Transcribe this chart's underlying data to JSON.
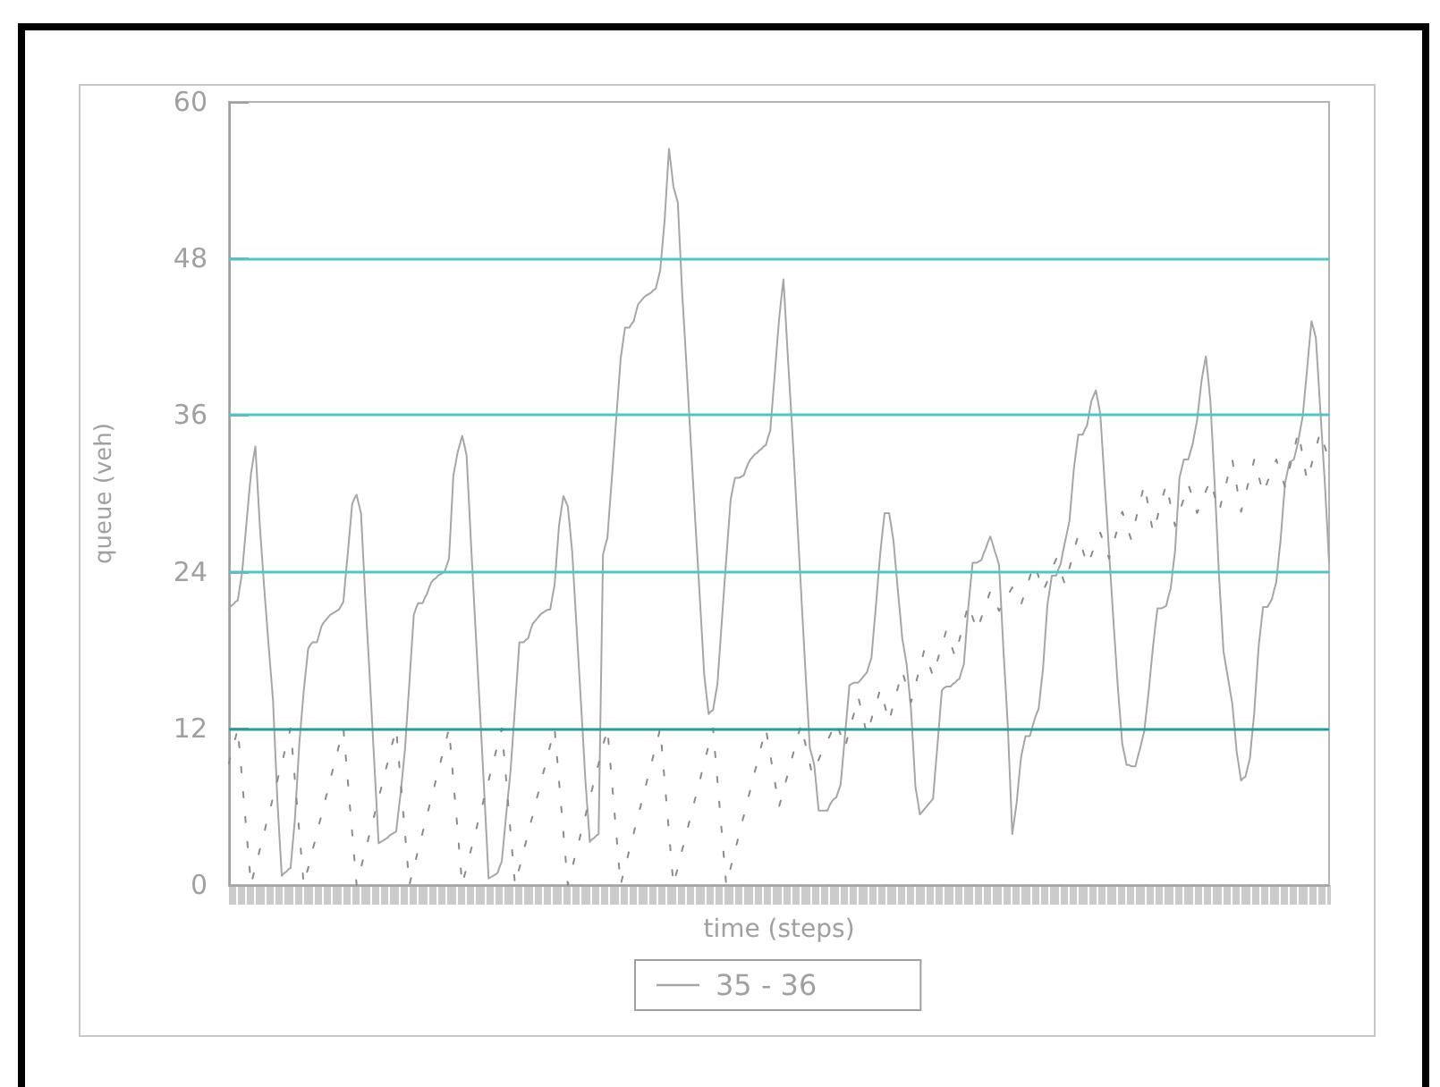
{
  "chart_data": {
    "type": "line",
    "xlabel": "time (steps)",
    "ylabel": "queue (veh)",
    "categories": [
      null,
      null,
      null,
      null,
      null,
      null,
      null,
      null,
      null,
      null,
      null,
      null,
      null,
      null,
      null,
      null,
      null,
      null,
      null,
      null,
      null,
      null,
      null,
      null,
      null,
      null,
      null,
      null,
      null,
      null,
      null,
      null,
      null,
      null,
      null,
      null,
      null,
      null,
      null,
      null,
      null,
      null,
      null,
      null,
      null,
      null,
      null,
      null,
      null,
      null,
      null,
      null,
      null,
      null,
      null,
      null,
      null,
      null,
      null,
      null,
      null,
      null,
      null,
      null,
      null,
      null,
      null,
      null,
      null,
      null,
      null,
      null,
      null,
      null,
      null,
      null,
      null,
      null,
      null,
      null,
      null,
      null,
      null,
      null,
      null,
      null,
      null,
      null,
      null,
      null,
      null,
      null,
      null,
      null,
      null,
      null,
      null,
      null,
      null,
      null,
      null,
      null,
      null,
      null,
      null,
      null,
      null,
      null,
      null,
      null,
      null,
      null,
      null,
      null,
      null,
      null,
      null,
      null,
      null,
      null,
      null,
      null,
      null,
      null,
      null,
      null,
      null,
      null,
      null,
      null,
      null,
      null,
      null,
      null,
      null,
      null,
      null,
      null,
      null,
      null,
      null,
      null,
      null,
      null,
      null,
      null,
      null,
      null,
      null,
      null,
      null,
      null,
      null,
      null,
      null,
      null,
      null,
      null,
      null,
      null,
      null,
      null,
      null,
      null,
      null,
      null,
      null,
      null,
      null,
      null,
      null,
      null,
      null,
      null,
      null,
      null,
      null,
      null,
      null,
      null,
      null,
      null,
      null,
      null,
      null,
      null,
      null,
      null,
      null,
      null,
      null,
      null,
      null,
      null,
      null,
      null,
      null,
      null,
      null,
      null,
      null,
      null,
      null,
      null,
      null,
      null,
      null,
      null,
      null,
      null,
      null,
      null,
      null,
      null,
      null,
      null,
      null,
      null,
      null,
      null,
      null,
      null,
      null,
      null,
      null,
      null,
      null,
      null,
      null,
      null,
      null,
      null,
      null,
      null,
      null,
      null,
      null,
      null,
      null,
      null,
      null,
      null,
      null,
      null,
      null,
      null,
      null,
      null,
      null,
      null,
      null,
      null,
      null,
      null,
      null,
      null,
      null,
      null,
      null,
      null,
      null,
      null,
      null,
      null,
      null,
      null,
      null,
      null,
      null,
      null,
      null,
      null,
      null,
      null,
      null,
      null,
      null,
      null,
      null,
      null,
      null,
      null,
      null,
      null,
      null,
      null,
      null,
      null,
      null,
      null,
      null,
      null,
      null,
      null,
      null,
      null,
      null,
      null,
      null,
      null,
      null,
      null,
      null,
      null,
      null,
      null,
      null,
      null,
      null,
      null,
      null,
      null,
      null,
      null,
      null,
      null,
      null,
      null,
      null,
      null,
      null,
      null,
      null,
      null,
      null,
      null,
      null,
      null,
      null,
      null,
      null,
      null,
      null,
      null,
      null,
      null,
      null,
      null,
      null,
      null,
      null,
      null,
      null,
      null,
      null,
      null,
      null,
      null,
      null,
      null,
      null,
      null,
      null,
      null,
      null,
      null,
      null,
      null,
      null,
      null,
      null,
      null,
      null,
      null,
      null,
      null,
      null,
      null,
      null,
      null,
      null,
      null,
      null,
      null,
      null,
      null,
      null,
      null,
      null,
      null,
      null,
      null,
      null,
      null,
      null,
      null,
      null,
      null,
      null,
      null,
      null,
      null,
      null,
      null,
      null,
      null,
      null,
      null,
      null,
      null,
      null,
      null,
      null,
      null,
      null,
      null,
      null,
      null,
      null,
      null,
      null,
      null,
      null,
      null,
      null,
      null,
      null,
      null,
      null,
      null,
      null,
      null,
      null,
      null,
      null,
      null,
      null,
      null,
      null,
      null,
      null,
      null,
      null,
      null,
      null,
      null,
      null,
      null,
      null,
      null,
      null,
      null,
      null,
      null,
      null,
      null,
      null,
      null,
      null,
      null,
      null,
      null,
      null,
      null,
      null,
      null,
      null,
      null,
      null,
      null,
      null,
      null,
      null,
      null,
      null,
      null,
      null,
      null,
      null,
      null,
      null,
      null,
      null,
      null,
      null,
      null,
      null,
      null,
      null,
      null,
      null,
      null,
      null,
      null,
      null,
      null,
      null,
      null,
      null,
      null,
      null,
      null,
      null,
      null,
      null,
      null,
      null,
      null,
      null,
      null,
      null
    ],
    "series": [
      {
        "name": "35 - 36",
        "color": "#a6a6a6",
        "values": [
          21.2,
          21.4,
          21.5,
          21.7,
          21.8,
          22.9,
          24,
          25.9,
          27.8,
          29.7,
          31.5,
          32.6,
          33.6,
          30.6,
          27.6,
          25.2,
          22.8,
          20.6,
          18.4,
          16.3,
          14.2,
          10.4,
          6.5,
          3.6,
          0.7,
          0.9,
          1,
          1.2,
          1.3,
          3.2,
          5.1,
          8,
          10.9,
          12.9,
          14.9,
          16.5,
          18.1,
          18.4,
          18.6,
          18.6,
          18.6,
          19.2,
          19.8,
          20.1,
          20.3,
          20.5,
          20.7,
          20.8,
          20.9,
          21,
          21.1,
          21.4,
          21.7,
          23.6,
          25.4,
          27.3,
          29.2,
          29.6,
          29.9,
          29.2,
          28.5,
          25.2,
          21.9,
          18.9,
          15.9,
          12.7,
          9.5,
          6.4,
          3.2,
          3.3,
          3.4,
          3.5,
          3.6,
          3.8,
          3.9,
          4,
          4.1,
          5.6,
          7,
          8.7,
          10.4,
          13,
          15.5,
          18.1,
          20.7,
          21.2,
          21.6,
          21.6,
          21.6,
          22,
          22.3,
          22.8,
          23.2,
          23.4,
          23.5,
          23.7,
          23.8,
          23.9,
          24,
          24.5,
          25,
          28.2,
          31.4,
          32.3,
          33.2,
          33.8,
          34.4,
          33.7,
          32.9,
          29.6,
          26.2,
          23,
          19.8,
          16.7,
          13.6,
          10.4,
          7.2,
          3.9,
          0.5,
          0.6,
          0.7,
          0.8,
          0.9,
          1.4,
          1.8,
          3.6,
          5.4,
          7.1,
          8.8,
          11.2,
          13.6,
          16.1,
          18.6,
          18.6,
          18.6,
          18.8,
          18.9,
          19.5,
          20,
          20.2,
          20.4,
          20.6,
          20.8,
          20.9,
          21,
          21.1,
          21.1,
          22.1,
          23,
          25.3,
          27.5,
          28.7,
          29.8,
          29.4,
          29,
          27.3,
          25.5,
          22.6,
          19.7,
          16.8,
          13.9,
          11,
          8,
          5.7,
          3.3,
          3.5,
          3.6,
          3.8,
          3.9,
          14.6,
          25.3,
          26,
          26.6,
          28.9,
          31.1,
          33.4,
          35.7,
          38,
          40.3,
          41.5,
          42.7,
          42.7,
          42.7,
          43,
          43.2,
          43.9,
          44.5,
          44.7,
          44.9,
          45.1,
          45.2,
          45.3,
          45.4,
          45.6,
          45.7,
          46.4,
          47.1,
          49,
          50.9,
          53.7,
          56.4,
          55,
          53.5,
          52.9,
          52.3,
          48.8,
          45.3,
          42.5,
          39.6,
          36.6,
          33.6,
          30.7,
          27.7,
          24.9,
          22,
          19.1,
          16.1,
          14.6,
          13.1,
          13.3,
          13.4,
          14.4,
          15.4,
          17.8,
          20.2,
          22.6,
          24.9,
          27.2,
          29.5,
          30.4,
          31.2,
          31.2,
          31.2,
          31.3,
          31.4,
          31.9,
          32.3,
          32.6,
          32.8,
          33,
          33.1,
          33.3,
          33.4,
          33.6,
          33.7,
          34.3,
          34.8,
          36.9,
          39,
          41.2,
          43.3,
          44.9,
          46.4,
          43.5,
          40.5,
          37.7,
          34.9,
          31.9,
          28.8,
          25.7,
          22.6,
          19.5,
          16.4,
          13.5,
          10.5,
          9.9,
          9.2,
          7.5,
          5.7,
          5.7,
          5.7,
          5.7,
          5.7,
          6.1,
          6.4,
          6.6,
          6.7,
          7.2,
          7.7,
          9.6,
          11.5,
          13.4,
          15.3,
          15.4,
          15.5,
          15.5,
          15.5,
          15.7,
          15.9,
          16.1,
          16.3,
          16.9,
          17.4,
          19.4,
          21.3,
          23.4,
          25.4,
          27,
          28.5,
          28.5,
          28.5,
          27.5,
          26.4,
          24.5,
          22.6,
          20.8,
          18.9,
          17.9,
          16.9,
          15.2,
          13.4,
          10.5,
          7.5,
          6.5,
          5.4,
          5.6,
          5.8,
          6,
          6.2,
          6.4,
          6.6,
          8.7,
          10.7,
          12.8,
          14.9,
          15.1,
          15.2,
          15.2,
          15.2,
          15.4,
          15.5,
          15.7,
          15.8,
          16.4,
          16.9,
          19.1,
          21.2,
          23,
          24.7,
          24.7,
          24.7,
          24.8,
          24.9,
          25.4,
          25.8,
          26.3,
          26.7,
          26.2,
          25.6,
          25.1,
          24.5,
          21.3,
          18,
          15.1,
          12.1,
          8,
          3.9,
          5.1,
          6.3,
          8.1,
          9.8,
          10.6,
          11.4,
          11.4,
          11.4,
          12,
          12.6,
          13.1,
          13.5,
          15.1,
          16.6,
          19.1,
          21.5,
          22.6,
          23.7,
          23.7,
          23.7,
          24.2,
          24.6,
          25.5,
          26.3,
          27.1,
          27.9,
          29.9,
          31.9,
          33.2,
          34.5,
          34.5,
          34.5,
          34.9,
          35.2,
          36.2,
          37.1,
          37.5,
          37.9,
          37,
          36.1,
          33.5,
          30.8,
          28.2,
          25.5,
          22.9,
          20.2,
          17.7,
          15.1,
          13,
          10.8,
          10,
          9.2,
          9.2,
          9.1,
          9.1,
          9.1,
          9.8,
          10.4,
          11.1,
          11.8,
          13.3,
          14.8,
          16.6,
          18.3,
          19.8,
          21.2,
          21.2,
          21.2,
          21.3,
          21.4,
          22.1,
          22.7,
          24.2,
          25.6,
          28.4,
          31.2,
          31.9,
          32.6,
          32.6,
          32.6,
          33.2,
          33.8,
          34.7,
          35.6,
          37.1,
          38.6,
          39.6,
          40.5,
          38.9,
          37.2,
          34,
          30.7,
          27.2,
          23.6,
          20.8,
          17.9,
          16.9,
          15.9,
          14.9,
          13.9,
          12.1,
          10.2,
          9.1,
          8,
          8.2,
          8.3,
          9,
          9.7,
          11.5,
          13.2,
          15.8,
          18.3,
          19.8,
          21.3,
          21.3,
          21.3,
          21.6,
          21.9,
          22.6,
          23.2,
          24.9,
          26.5,
          28.7,
          30.8,
          31.6,
          32.4,
          32.5,
          32.6,
          33.3,
          34,
          35,
          35.9,
          37.7,
          39.5,
          41.4,
          43.2,
          42.6,
          41.9,
          39.2,
          36.4,
          33.7,
          31,
          27.9,
          24.7
        ]
      },
      {
        "color": "#8a8a8a",
        "line_style": "dashed",
        "values": [
          9.3,
          10,
          10.7,
          11.3,
          12,
          10,
          8,
          6,
          4,
          2,
          0,
          0.7,
          1.3,
          2,
          2.7,
          3.3,
          4,
          4.7,
          5.3,
          6,
          6.7,
          7.3,
          8,
          8.7,
          9.3,
          10,
          10.7,
          11.3,
          12,
          10,
          8,
          6,
          4,
          2,
          0,
          0.7,
          1.3,
          2,
          2.7,
          3.3,
          4,
          4.7,
          5.3,
          6,
          6.7,
          7.3,
          8,
          8.7,
          9.3,
          10,
          10.7,
          11.3,
          12,
          10,
          8,
          6,
          4,
          2,
          0,
          0.7,
          1.3,
          2,
          2.7,
          3.3,
          4,
          4.7,
          5.3,
          6,
          6.7,
          7.3,
          8,
          8.7,
          9.3,
          10,
          10.7,
          11.3,
          12,
          10,
          8,
          6,
          4,
          2,
          0,
          0.7,
          1.3,
          2,
          2.7,
          3.3,
          4,
          4.7,
          5.3,
          6,
          6.7,
          7.3,
          8,
          8.7,
          9.3,
          10,
          10.7,
          11.3,
          12,
          10,
          8,
          6,
          4,
          2,
          0,
          0.7,
          1.3,
          2,
          2.7,
          3.3,
          4,
          4.7,
          5.3,
          6,
          6.7,
          7.3,
          8,
          8.7,
          9.3,
          10,
          10.7,
          11.3,
          12,
          10,
          8,
          6,
          4,
          2,
          0,
          0.7,
          1.3,
          2,
          2.7,
          3.3,
          4,
          4.7,
          5.3,
          6,
          6.7,
          7.3,
          8,
          8.7,
          9.3,
          10,
          10.7,
          11.3,
          12,
          10,
          8,
          6,
          4,
          2,
          0,
          0.7,
          1.3,
          2,
          2.7,
          3.3,
          4,
          4.7,
          5.3,
          6,
          6.7,
          7.3,
          8,
          8.7,
          9.3,
          10,
          10.7,
          11.3,
          12,
          10,
          8,
          6,
          4,
          2,
          0,
          0.7,
          1.3,
          2,
          2.7,
          3.3,
          4,
          4.7,
          5.3,
          6,
          6.7,
          7.3,
          8,
          8.7,
          9.3,
          10,
          10.7,
          11.3,
          12,
          10,
          8,
          6,
          4,
          2,
          0,
          0.7,
          1.3,
          2,
          2.7,
          3.3,
          4,
          4.7,
          5.3,
          6,
          6.7,
          7.3,
          8,
          8.7,
          9.3,
          10,
          10.7,
          11.3,
          12,
          10,
          8,
          6,
          4,
          2,
          0,
          0.7,
          1.3,
          2,
          2.7,
          3.3,
          4,
          4.7,
          5.3,
          6,
          6.7,
          7.3,
          8,
          8.7,
          9.3,
          10,
          10.7,
          11.3,
          12,
          11,
          10,
          9,
          8,
          7,
          6,
          6.6,
          7.3,
          7.9,
          8.5,
          9.2,
          9.8,
          10.4,
          11,
          11.7,
          12.3,
          11.5,
          10.8,
          10,
          9.3,
          8.5,
          8.9,
          9.2,
          9.6,
          10,
          10.3,
          10.7,
          11.1,
          11.4,
          11.8,
          12.1,
          12.5,
          12,
          11.5,
          11,
          10.5,
          11.2,
          11.8,
          12.5,
          13.1,
          13.8,
          14.4,
          13.7,
          13,
          12.2,
          11.5,
          12.1,
          12.7,
          13.3,
          13.8,
          14.4,
          15,
          14.4,
          13.8,
          13.1,
          12.5,
          13.2,
          13.8,
          14.5,
          15.1,
          15.8,
          16.4,
          15.8,
          15.2,
          14.6,
          14,
          14.7,
          15.3,
          16,
          16.7,
          17.3,
          18,
          17.5,
          17,
          16.5,
          16,
          16.6,
          17.2,
          17.8,
          18.3,
          18.9,
          19.5,
          19,
          18.5,
          18,
          17.5,
          18.2,
          18.8,
          19.5,
          20.2,
          20.8,
          21.5,
          21,
          20.5,
          20,
          19.5,
          20,
          20.5,
          21,
          21.5,
          22,
          22.5,
          22.1,
          21.8,
          21.4,
          21,
          21.3,
          21.6,
          21.9,
          22.2,
          22.5,
          22.8,
          22.5,
          22.2,
          21.8,
          21.5,
          22,
          22.5,
          23.1,
          23.6,
          24.1,
          24.6,
          24.1,
          23.6,
          23,
          22.5,
          22.9,
          23.3,
          23.8,
          24.2,
          24.6,
          25,
          24.5,
          24,
          23.5,
          23,
          23.6,
          24.3,
          24.9,
          25.5,
          26.2,
          26.8,
          26.2,
          25.7,
          25.1,
          24.5,
          24.9,
          25.3,
          25.8,
          26.2,
          26.6,
          27,
          26.5,
          26,
          25.5,
          25,
          25.6,
          26.2,
          26.8,
          27.4,
          28,
          28.6,
          28.1,
          27.6,
          27,
          26.5,
          27.2,
          27.9,
          28.6,
          29.3,
          30,
          30.7,
          29.8,
          28.9,
          27.9,
          27,
          27.6,
          28.2,
          28.9,
          29.5,
          30.1,
          30.7,
          29.9,
          29.1,
          28.3,
          27.5,
          28,
          28.6,
          29.1,
          29.6,
          30.2,
          30.7,
          30.2,
          29.6,
          29.1,
          28.5,
          28.9,
          29.3,
          29.8,
          30.2,
          30.6,
          31,
          30.4,
          29.8,
          29.2,
          28.6,
          29.3,
          29.9,
          30.6,
          31.3,
          31.9,
          32.6,
          31.6,
          30.6,
          29.6,
          28.6,
          29.3,
          29.9,
          30.6,
          31.3,
          31.9,
          32.6,
          32,
          31.3,
          30.7,
          30,
          30.4,
          30.9,
          31.3,
          31.7,
          32.2,
          32.6,
          32.1,
          31.6,
          31,
          30.5,
          31.2,
          31.9,
          32.6,
          33.3,
          34,
          34.7,
          33.8,
          32.9,
          31.9,
          31,
          31.6,
          32.2,
          32.9,
          33.5,
          34.1,
          34.7,
          34.2,
          33.6,
          33.1,
          32.5
        ]
      }
    ],
    "ylim": [
      0,
      60
    ],
    "yticks": [
      0,
      12,
      24,
      36,
      48,
      60
    ],
    "ref_lines": [
      {
        "axis": "y",
        "value": 12,
        "color": "#1f9e9e"
      },
      {
        "axis": "y",
        "value": 24,
        "color": "#4fc6c6"
      },
      {
        "axis": "y",
        "value": 36,
        "color": "#4fc6c6"
      },
      {
        "axis": "y",
        "value": 48,
        "color": "#4fc6c6"
      }
    ],
    "legend": "bottom",
    "grid": false,
    "marker": "none",
    "tick_labels": "y",
    "line_style": "solid"
  }
}
